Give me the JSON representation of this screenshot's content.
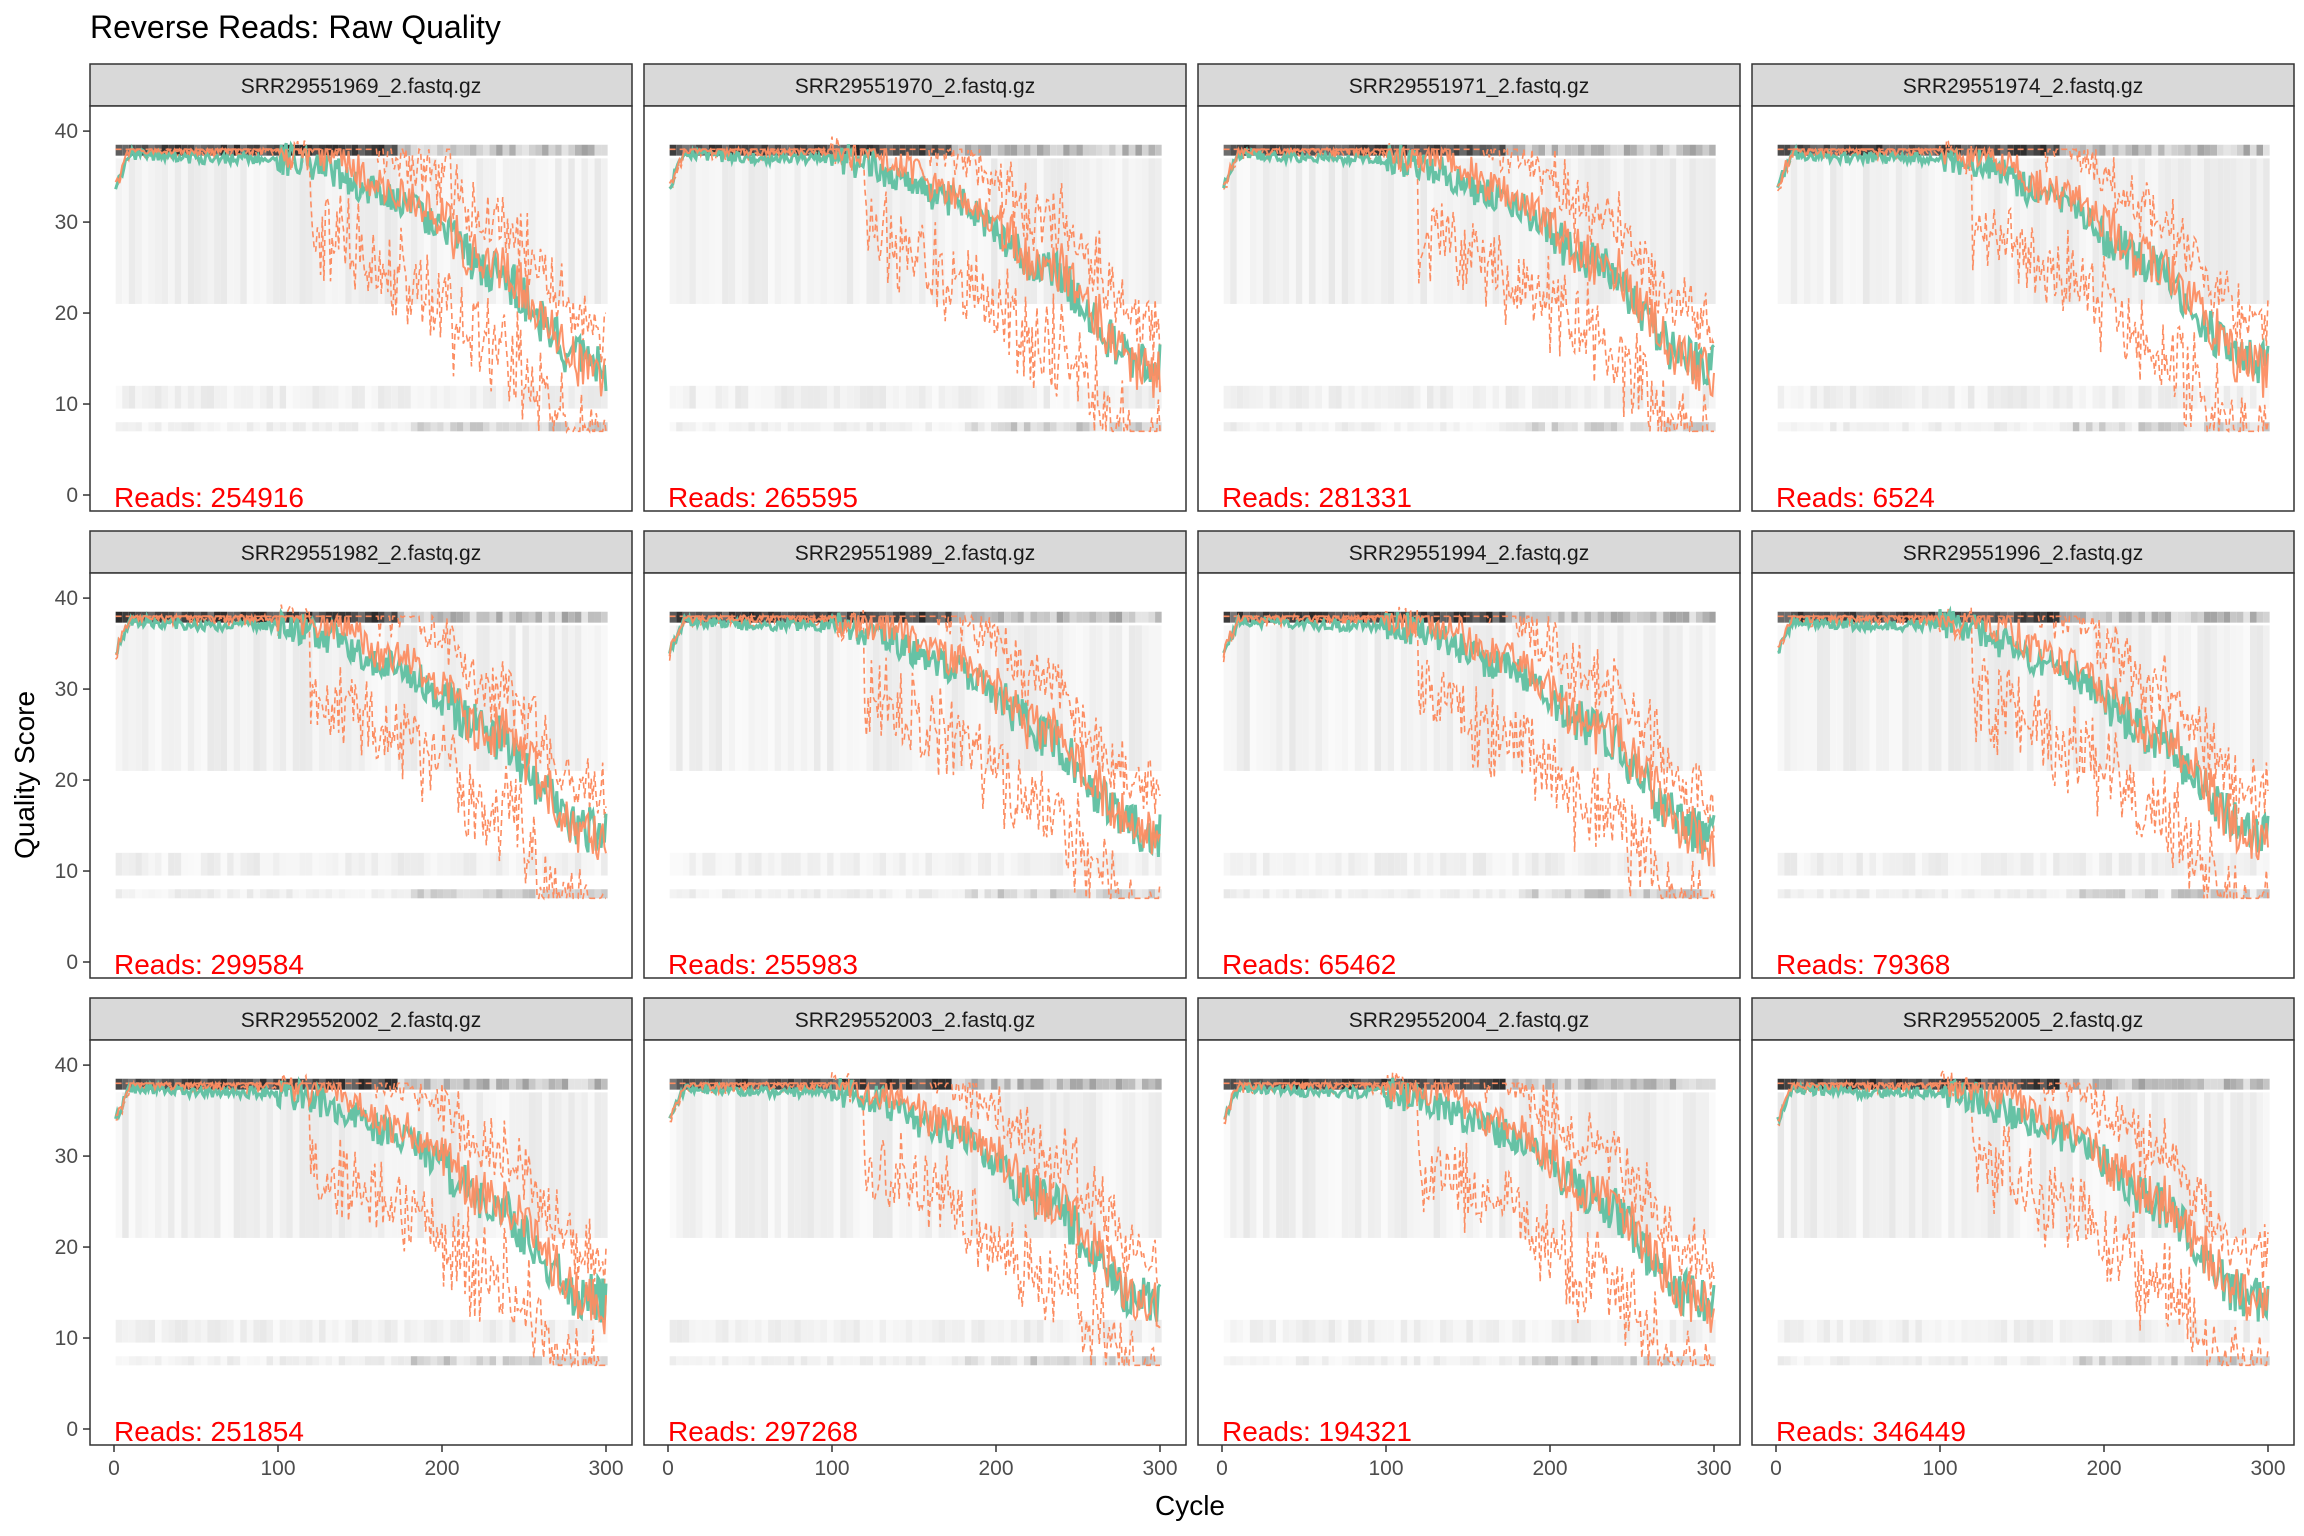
{
  "figure": {
    "title": "Reverse Reads: Raw Quality",
    "xlabel": "Cycle",
    "ylabel": "Quality Score",
    "reads_prefix": "Reads:",
    "colors": {
      "mean_line": "#66c2a5",
      "quantile_lines": "#fc8d62",
      "read_count_text": "#ff0000",
      "strip_fill": "#d9d9d9",
      "panel_border": "#333333",
      "heatmap_base": "#e8e8e8"
    }
  },
  "chart_data": {
    "type": "line",
    "facets": 12,
    "layout": "3 rows x 4 columns",
    "xlim": [
      0,
      300
    ],
    "ylim": [
      0,
      41
    ],
    "x_ticks": [
      0,
      100,
      200,
      300
    ],
    "y_ticks": [
      0,
      10,
      20,
      30,
      40
    ],
    "grid": false,
    "legend": "none",
    "series_types": [
      "heatmap of quality score counts",
      "mean quality (green)",
      "median (solid orange)",
      "25th/75th percentile (dashed orange)"
    ],
    "quality_profile": {
      "x": [
        1,
        10,
        50,
        100,
        120,
        140,
        160,
        180,
        200,
        220,
        240,
        260,
        280,
        300
      ],
      "mean": [
        34,
        37.5,
        37,
        37,
        36.5,
        35,
        33,
        32,
        29,
        26,
        24,
        19,
        15,
        14
      ],
      "median": [
        34,
        38,
        38,
        38,
        37.5,
        37,
        34,
        33,
        30,
        26,
        25,
        20,
        15,
        13
      ]
    },
    "panels": [
      {
        "name": "SRR29551969_2.fastq.gz",
        "reads": "254916"
      },
      {
        "name": "SRR29551970_2.fastq.gz",
        "reads": "265595"
      },
      {
        "name": "SRR29551971_2.fastq.gz",
        "reads": "281331"
      },
      {
        "name": "SRR29551974_2.fastq.gz",
        "reads": "6524"
      },
      {
        "name": "SRR29551982_2.fastq.gz",
        "reads": "299584"
      },
      {
        "name": "SRR29551989_2.fastq.gz",
        "reads": "255983"
      },
      {
        "name": "SRR29551994_2.fastq.gz",
        "reads": "65462"
      },
      {
        "name": "SRR29551996_2.fastq.gz",
        "reads": "79368"
      },
      {
        "name": "SRR29552002_2.fastq.gz",
        "reads": "251854"
      },
      {
        "name": "SRR29552003_2.fastq.gz",
        "reads": "297268"
      },
      {
        "name": "SRR29552004_2.fastq.gz",
        "reads": "194321"
      },
      {
        "name": "SRR29552005_2.fastq.gz",
        "reads": "346449"
      }
    ]
  }
}
